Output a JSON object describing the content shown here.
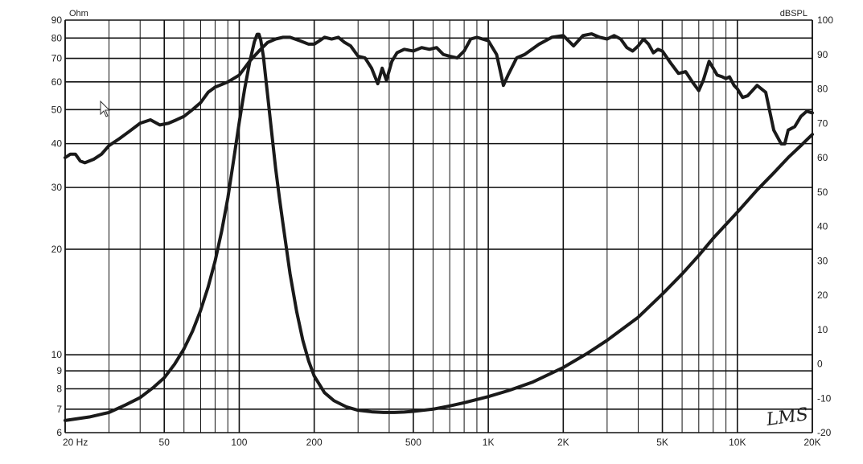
{
  "chart_data": {
    "type": "line",
    "x_scale": "log",
    "xlim": [
      20,
      20000
    ],
    "x_tick_labels": [
      {
        "value": 20,
        "label": "20 Hz"
      },
      {
        "value": 50,
        "label": "50"
      },
      {
        "value": 100,
        "label": "100"
      },
      {
        "value": 200,
        "label": "200"
      },
      {
        "value": 500,
        "label": "500"
      },
      {
        "value": 1000,
        "label": "1K"
      },
      {
        "value": 2000,
        "label": "2K"
      },
      {
        "value": 5000,
        "label": "5K"
      },
      {
        "value": 10000,
        "label": "10K"
      },
      {
        "value": 20000,
        "label": "20K"
      }
    ],
    "y_left": {
      "unit": "Ohm",
      "scale": "log",
      "ylim": [
        6,
        90
      ],
      "ticks": [
        6,
        7,
        8,
        9,
        10,
        20,
        30,
        40,
        50,
        60,
        70,
        80,
        90
      ]
    },
    "y_right": {
      "unit": "dBSPL",
      "scale": "linear",
      "ylim": [
        -20,
        100
      ],
      "ticks": [
        -20,
        -10,
        0,
        10,
        20,
        30,
        40,
        50,
        60,
        70,
        80,
        90,
        100
      ]
    },
    "grid": true,
    "watermark": "LMS",
    "series": [
      {
        "axis": "right",
        "x": [
          20,
          21,
          22,
          23,
          24,
          26,
          28,
          30,
          33,
          36,
          40,
          44,
          48,
          52,
          56,
          60,
          65,
          70,
          75,
          80,
          90,
          100,
          110,
          120,
          130,
          140,
          150,
          160,
          175,
          190,
          200,
          210,
          220,
          235,
          250,
          265,
          280,
          300,
          320,
          340,
          360,
          375,
          390,
          410,
          430,
          460,
          500,
          540,
          580,
          620,
          660,
          700,
          750,
          800,
          850,
          900,
          1000,
          1080,
          1150,
          1200,
          1300,
          1400,
          1600,
          1800,
          2000,
          2200,
          2400,
          2600,
          2800,
          3000,
          3200,
          3400,
          3600,
          3800,
          4000,
          4200,
          4400,
          4600,
          4800,
          5000,
          5400,
          5800,
          6200,
          6600,
          7000,
          7300,
          7700,
          8000,
          8300,
          8700,
          9000,
          9300,
          9700,
          10000,
          10500,
          11000,
          12000,
          13000,
          14000,
          15000,
          15500,
          16000,
          17000,
          18000,
          19000,
          20000
        ],
        "y": [
          60,
          61,
          61,
          59,
          58.5,
          59.5,
          61,
          63.5,
          65.5,
          67.5,
          70,
          71,
          69.5,
          70,
          71,
          72,
          74,
          76,
          79,
          80.5,
          82,
          84,
          88,
          91,
          93.5,
          94.5,
          95,
          95,
          94,
          93,
          93,
          94,
          95,
          94.5,
          95,
          93.5,
          92.5,
          89.5,
          89,
          86,
          81.5,
          86,
          82.5,
          88,
          90.5,
          91.5,
          91,
          92,
          91.5,
          92,
          90,
          89.5,
          89,
          91,
          94.5,
          95,
          94,
          90,
          81,
          84,
          89,
          90,
          93,
          95,
          95.5,
          92.5,
          95.5,
          96,
          95,
          94.5,
          95.5,
          94.5,
          92,
          91,
          92.5,
          94.5,
          93,
          90.5,
          91.5,
          91,
          87.5,
          84.5,
          85,
          82,
          79.5,
          82.5,
          88,
          86,
          84,
          83.5,
          83,
          83.5,
          81,
          80,
          77.5,
          78,
          81,
          79,
          68,
          64,
          64,
          68,
          69,
          72,
          73.5,
          73
        ]
      },
      {
        "axis": "left",
        "x": [
          20,
          25,
          30,
          35,
          40,
          45,
          50,
          55,
          60,
          65,
          70,
          75,
          80,
          85,
          90,
          95,
          100,
          105,
          110,
          115,
          118,
          120,
          122,
          125,
          130,
          135,
          140,
          145,
          150,
          160,
          170,
          180,
          190,
          200,
          220,
          240,
          270,
          300,
          340,
          380,
          420,
          460,
          500,
          600,
          700,
          800,
          1000,
          1200,
          1500,
          2000,
          2500,
          3000,
          4000,
          5000,
          6000,
          7000,
          8000,
          10000,
          12000,
          14000,
          16000,
          18000,
          20000
        ],
        "y": [
          6.5,
          6.65,
          6.85,
          7.2,
          7.55,
          8.05,
          8.6,
          9.4,
          10.4,
          11.7,
          13.4,
          15.6,
          18.5,
          22.5,
          28,
          36,
          46,
          57,
          68,
          78,
          82,
          82,
          79,
          71,
          55,
          43,
          34,
          28,
          23.5,
          17,
          13.3,
          11,
          9.6,
          8.7,
          7.8,
          7.4,
          7.1,
          6.95,
          6.88,
          6.85,
          6.85,
          6.87,
          6.9,
          7.0,
          7.15,
          7.3,
          7.6,
          7.9,
          8.35,
          9.2,
          10.1,
          11.0,
          12.8,
          14.9,
          17.0,
          19.2,
          21.5,
          25.5,
          29.5,
          33.0,
          36.5,
          39.5,
          42.5
        ]
      }
    ]
  }
}
